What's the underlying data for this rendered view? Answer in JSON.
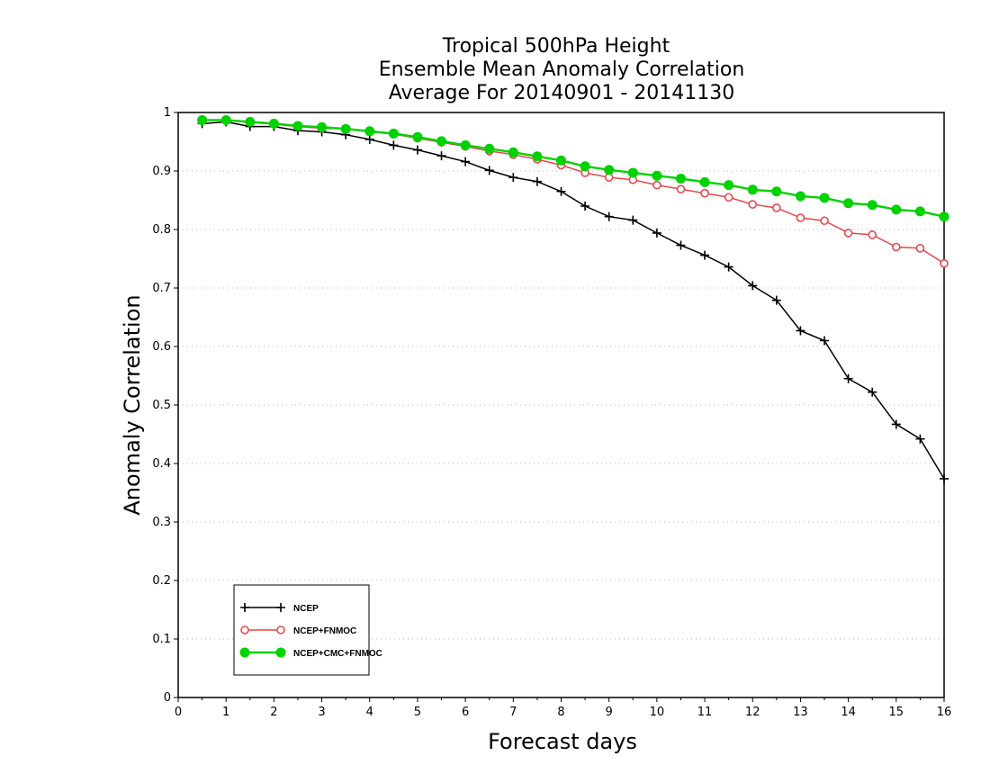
{
  "chart_data": {
    "type": "line",
    "title": [
      "Tropical 500hPa Height",
      "Ensemble Mean Anomaly Correlation",
      "Average For 20140901 - 20141130"
    ],
    "xlabel": "Forecast days",
    "ylabel": "Anomaly Correlation",
    "xlim": [
      0,
      16
    ],
    "ylim": [
      0,
      1
    ],
    "x_ticks": [
      "0",
      "1",
      "2",
      "3",
      "4",
      "5",
      "6",
      "7",
      "8",
      "9",
      "10",
      "11",
      "12",
      "13",
      "14",
      "15",
      "16"
    ],
    "y_ticks": [
      "0",
      "0.1",
      "0.2",
      "0.3",
      "0.4",
      "0.5",
      "0.6",
      "0.7",
      "0.8",
      "0.9",
      "1"
    ],
    "grid": "horizontal dotted",
    "legend_position": "bottom-left",
    "x": [
      0.5,
      1,
      1.5,
      2,
      2.5,
      3,
      3.5,
      4,
      4.5,
      5,
      5.5,
      6,
      6.5,
      7,
      7.5,
      8,
      8.5,
      9,
      9.5,
      10,
      10.5,
      11,
      11.5,
      12,
      12.5,
      13,
      13.5,
      14,
      14.5,
      15,
      15.5,
      16
    ],
    "series": [
      {
        "name": "NCEP",
        "color": "#000000",
        "marker": "plus",
        "values": [
          0.981,
          0.984,
          0.976,
          0.976,
          0.969,
          0.967,
          0.962,
          0.954,
          0.944,
          0.936,
          0.926,
          0.916,
          0.901,
          0.889,
          0.882,
          0.865,
          0.84,
          0.822,
          0.816,
          0.794,
          0.773,
          0.756,
          0.736,
          0.704,
          0.679,
          0.627,
          0.61,
          0.545,
          0.522,
          0.467,
          0.442,
          0.374
        ]
      },
      {
        "name": "NCEP+FNMOC",
        "color": "#e8474c",
        "marker": "open-circle",
        "values": [
          0.987,
          0.987,
          0.983,
          0.98,
          0.976,
          0.973,
          0.972,
          0.967,
          0.963,
          0.956,
          0.949,
          0.942,
          0.934,
          0.928,
          0.92,
          0.91,
          0.897,
          0.889,
          0.885,
          0.876,
          0.869,
          0.862,
          0.855,
          0.843,
          0.837,
          0.82,
          0.815,
          0.794,
          0.791,
          0.77,
          0.768,
          0.742
        ]
      },
      {
        "name": "NCEP+CMC+FNMOC",
        "color": "#00d200",
        "marker": "filled-circle",
        "values": [
          0.987,
          0.987,
          0.984,
          0.981,
          0.977,
          0.975,
          0.972,
          0.968,
          0.964,
          0.958,
          0.951,
          0.944,
          0.938,
          0.932,
          0.925,
          0.918,
          0.908,
          0.902,
          0.897,
          0.892,
          0.887,
          0.881,
          0.876,
          0.868,
          0.865,
          0.857,
          0.854,
          0.845,
          0.842,
          0.834,
          0.831,
          0.822
        ]
      }
    ]
  }
}
